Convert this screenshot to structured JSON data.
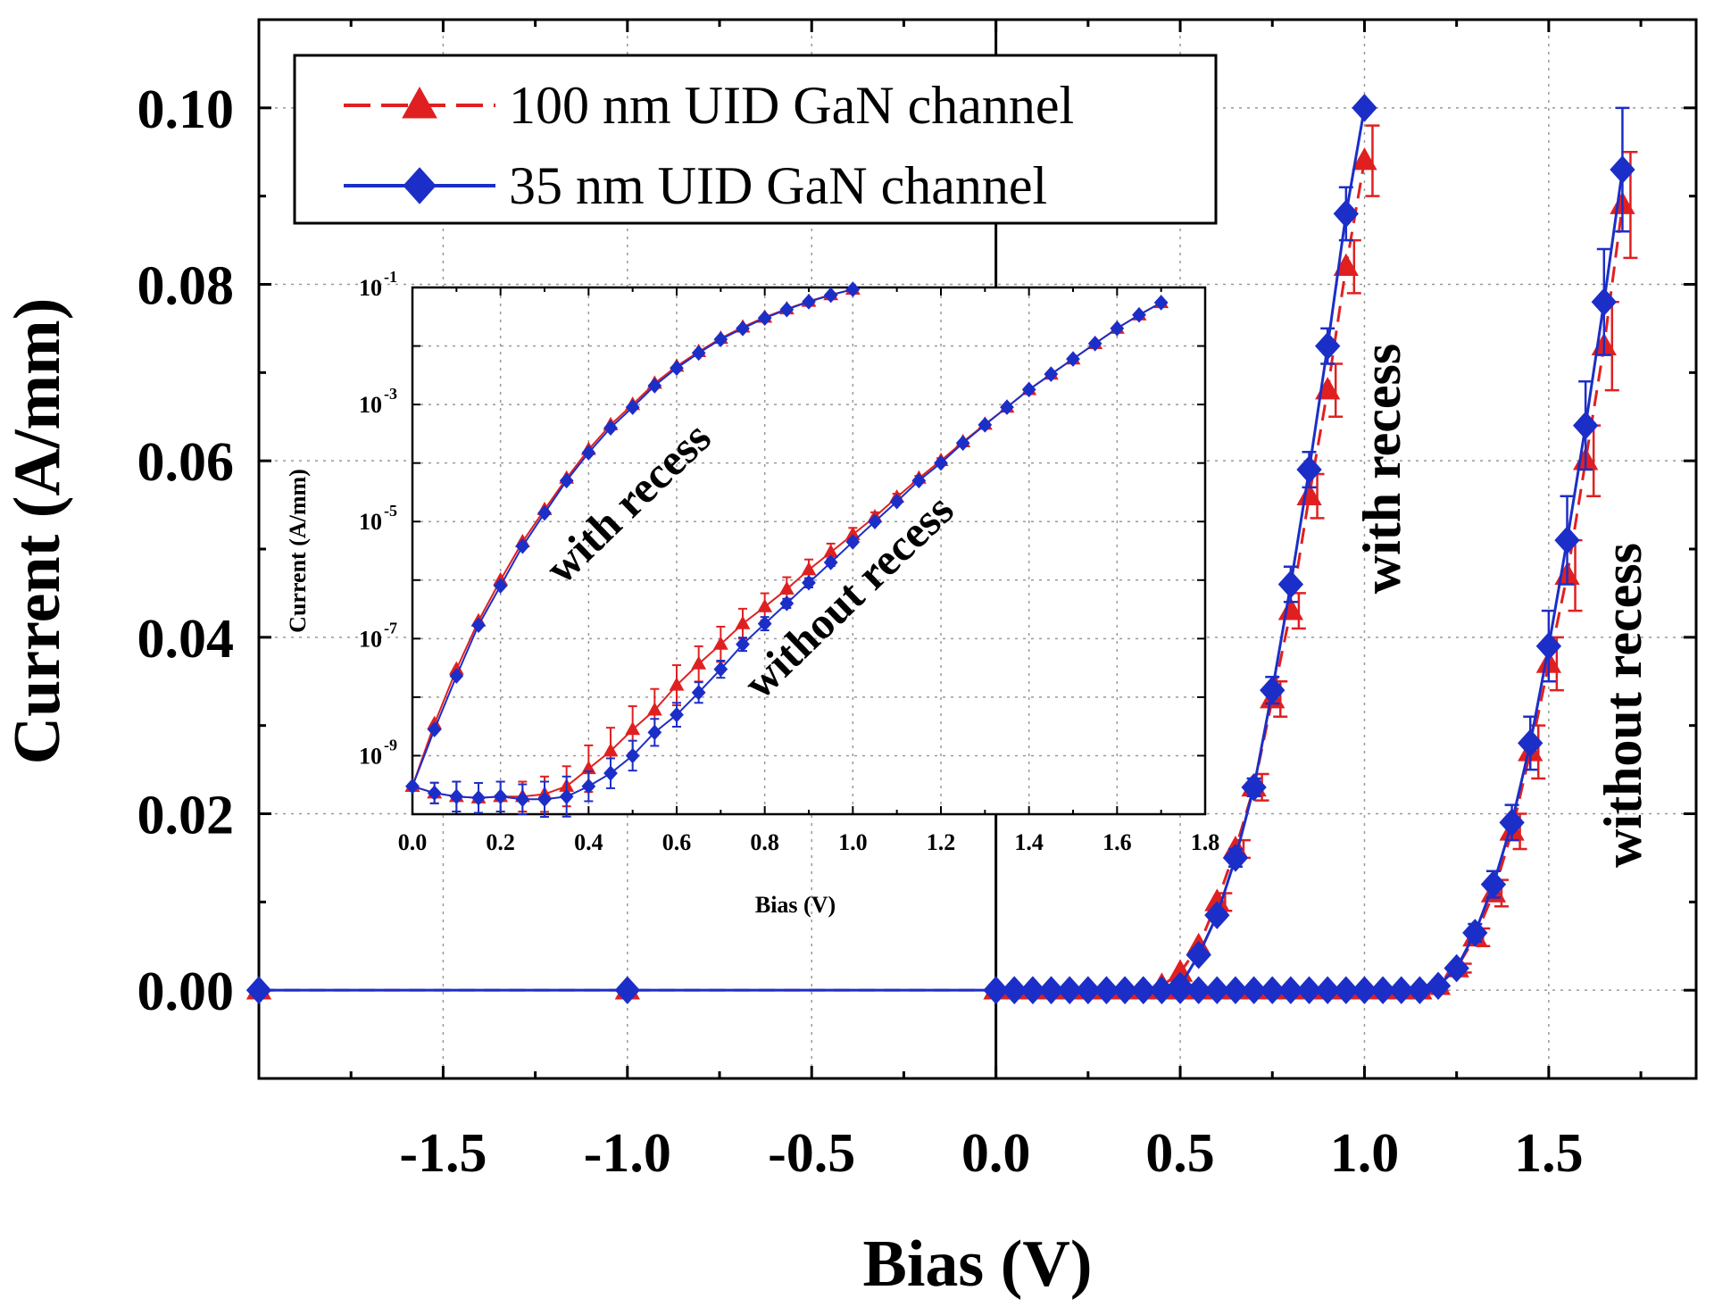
{
  "chart_data": [
    {
      "type": "line",
      "xlabel": "Bias (V)",
      "ylabel": "Current (A/mm)",
      "xlim": [
        -2.0,
        1.9
      ],
      "ylim": [
        -0.01,
        0.11
      ],
      "x_ticks": [
        "-1.5",
        "-1.0",
        "-0.5",
        "0.0",
        "0.5",
        "1.0",
        "1.5"
      ],
      "y_ticks": [
        "0.00",
        "0.02",
        "0.04",
        "0.06",
        "0.08",
        "0.10"
      ],
      "x_tick_values": [
        -1.5,
        -1.0,
        -0.5,
        0.0,
        0.5,
        1.0,
        1.5
      ],
      "y_tick_values": [
        0.0,
        0.02,
        0.04,
        0.06,
        0.08,
        0.1
      ],
      "grid": true,
      "legend_position": "top-left",
      "legend": [
        "100 nm UID GaN channel",
        "35 nm UID GaN channel"
      ],
      "annotations": [
        "with recess",
        "without recess"
      ],
      "series": [
        {
          "name": "100 nm UID GaN channel",
          "group": "with recess",
          "color": "#e02020",
          "marker": "triangle",
          "x": [
            -2.0,
            -1.0,
            0.0,
            0.05,
            0.1,
            0.15,
            0.2,
            0.25,
            0.3,
            0.35,
            0.4,
            0.45,
            0.5,
            0.55,
            0.6,
            0.65,
            0.7,
            0.75,
            0.8,
            0.85,
            0.9,
            0.95,
            1.0
          ],
          "y": [
            0.0,
            0.0,
            0.0,
            0.0,
            0.0,
            0.0,
            0.0,
            0.0,
            0.0,
            0.0,
            0.0,
            0.0005,
            0.002,
            0.005,
            0.01,
            0.016,
            0.023,
            0.033,
            0.043,
            0.056,
            0.068,
            0.082,
            0.094
          ],
          "err": [
            0,
            0,
            0,
            0,
            0,
            0,
            0,
            0,
            0,
            0,
            0,
            0,
            0,
            0,
            0.001,
            0.001,
            0.0015,
            0.002,
            0.002,
            0.0025,
            0.003,
            0.003,
            0.004
          ]
        },
        {
          "name": "35 nm UID GaN channel",
          "group": "with recess",
          "color": "#1c2ec8",
          "marker": "diamond",
          "x": [
            -2.0,
            -1.0,
            0.0,
            0.05,
            0.1,
            0.15,
            0.2,
            0.25,
            0.3,
            0.35,
            0.4,
            0.45,
            0.5,
            0.55,
            0.6,
            0.65,
            0.7,
            0.75,
            0.8,
            0.85,
            0.9,
            0.95,
            1.0
          ],
          "y": [
            0.0,
            0.0,
            0.0,
            0.0,
            0.0,
            0.0,
            0.0,
            0.0,
            0.0,
            0.0,
            0.0,
            0.0,
            0.0005,
            0.004,
            0.0085,
            0.015,
            0.023,
            0.034,
            0.046,
            0.059,
            0.073,
            0.088,
            0.1
          ],
          "err": [
            0,
            0,
            0,
            0,
            0,
            0,
            0,
            0,
            0,
            0,
            0,
            0,
            0,
            0,
            0.0005,
            0.001,
            0.001,
            0.0015,
            0.002,
            0.002,
            0.002,
            0.003,
            0.0
          ]
        },
        {
          "name": "100 nm UID GaN channel",
          "group": "without recess",
          "color": "#e02020",
          "marker": "triangle",
          "x": [
            0.0,
            0.05,
            0.1,
            0.15,
            0.2,
            0.25,
            0.3,
            0.35,
            0.4,
            0.45,
            0.5,
            0.55,
            0.6,
            0.65,
            0.7,
            0.75,
            0.8,
            0.85,
            0.9,
            0.95,
            1.0,
            1.05,
            1.1,
            1.15,
            1.2,
            1.25,
            1.3,
            1.35,
            1.4,
            1.45,
            1.5,
            1.55,
            1.6,
            1.65,
            1.7
          ],
          "y": [
            0.0,
            0.0,
            0.0,
            0.0,
            0.0,
            0.0,
            0.0,
            0.0,
            0.0,
            0.0,
            0.0,
            0.0,
            0.0,
            0.0,
            0.0,
            0.0,
            0.0,
            0.0,
            0.0,
            0.0,
            0.0,
            0.0,
            0.0,
            0.0,
            0.0005,
            0.0025,
            0.006,
            0.011,
            0.018,
            0.027,
            0.037,
            0.047,
            0.06,
            0.073,
            0.089
          ],
          "err": [
            0,
            0,
            0,
            0,
            0,
            0,
            0,
            0,
            0,
            0,
            0,
            0,
            0,
            0,
            0,
            0,
            0,
            0,
            0,
            0,
            0,
            0,
            0,
            0,
            0,
            0.0005,
            0.001,
            0.0015,
            0.002,
            0.003,
            0.003,
            0.004,
            0.004,
            0.005,
            0.006
          ]
        },
        {
          "name": "35 nm UID GaN channel",
          "group": "without recess",
          "color": "#1c2ec8",
          "marker": "diamond",
          "x": [
            0.0,
            0.05,
            0.1,
            0.15,
            0.2,
            0.25,
            0.3,
            0.35,
            0.4,
            0.45,
            0.5,
            0.55,
            0.6,
            0.65,
            0.7,
            0.75,
            0.8,
            0.85,
            0.9,
            0.95,
            1.0,
            1.05,
            1.1,
            1.15,
            1.2,
            1.25,
            1.3,
            1.35,
            1.4,
            1.45,
            1.5,
            1.55,
            1.6,
            1.65,
            1.7
          ],
          "y": [
            0.0,
            0.0,
            0.0,
            0.0,
            0.0,
            0.0,
            0.0,
            0.0,
            0.0,
            0.0,
            0.0,
            0.0,
            0.0,
            0.0,
            0.0,
            0.0,
            0.0,
            0.0,
            0.0,
            0.0,
            0.0,
            0.0,
            0.0,
            0.0,
            0.0005,
            0.0025,
            0.0065,
            0.012,
            0.019,
            0.028,
            0.039,
            0.051,
            0.064,
            0.078,
            0.093
          ],
          "err": [
            0,
            0,
            0,
            0,
            0,
            0,
            0,
            0,
            0,
            0,
            0,
            0,
            0,
            0,
            0,
            0,
            0,
            0,
            0,
            0,
            0,
            0,
            0,
            0,
            0,
            0.0005,
            0.001,
            0.0015,
            0.002,
            0.003,
            0.004,
            0.005,
            0.005,
            0.006,
            0.007
          ]
        }
      ]
    },
    {
      "type": "line",
      "xlabel": "Bias (V)",
      "ylabel": "Current (A/mm)",
      "xlim": [
        0.0,
        1.8
      ],
      "ylim": [
        1e-10,
        0.1
      ],
      "y_scale": "log",
      "x_ticks": [
        "0.0",
        "0.2",
        "0.4",
        "0.6",
        "0.8",
        "1.0",
        "1.2",
        "1.4",
        "1.6",
        "1.8"
      ],
      "y_ticks": [
        "10",
        "10",
        "10",
        "10",
        "10"
      ],
      "y_tick_exponents": [
        "-1",
        "-3",
        "-5",
        "-7",
        "-9"
      ],
      "x_tick_values": [
        0.0,
        0.2,
        0.4,
        0.6,
        0.8,
        1.0,
        1.2,
        1.4,
        1.6,
        1.8
      ],
      "y_tick_values": [
        0.1,
        0.001,
        1e-05,
        1e-07,
        1e-09
      ],
      "grid": true,
      "annotations": [
        "with recess",
        "without recess"
      ],
      "series": [
        {
          "name": "100 nm UID GaN channel",
          "group": "with recess",
          "color": "#e02020",
          "marker": "triangle",
          "x": [
            0.0,
            0.05,
            0.1,
            0.15,
            0.2,
            0.25,
            0.3,
            0.35,
            0.4,
            0.45,
            0.5,
            0.55,
            0.6,
            0.65,
            0.7,
            0.75,
            0.8,
            0.85,
            0.9,
            0.95,
            1.0
          ],
          "y": [
            3e-10,
            3.5e-09,
            3e-08,
            2e-07,
            1e-06,
            4.5e-06,
            1.6e-05,
            5.5e-05,
            0.00017,
            0.00045,
            0.001,
            0.0023,
            0.0045,
            0.008,
            0.0135,
            0.021,
            0.031,
            0.043,
            0.058,
            0.075,
            0.093
          ]
        },
        {
          "name": "35 nm UID GaN channel",
          "group": "with recess",
          "color": "#1c2ec8",
          "marker": "diamond",
          "x": [
            0.0,
            0.05,
            0.1,
            0.15,
            0.2,
            0.25,
            0.3,
            0.35,
            0.4,
            0.45,
            0.5,
            0.55,
            0.6,
            0.65,
            0.7,
            0.75,
            0.8,
            0.85,
            0.9,
            0.95,
            1.0
          ],
          "y": [
            3e-10,
            2.8e-09,
            2.3e-08,
            1.7e-07,
            8e-07,
            3.8e-06,
            1.4e-05,
            5e-05,
            0.00015,
            0.0004,
            0.0009,
            0.0021,
            0.0042,
            0.0076,
            0.013,
            0.02,
            0.03,
            0.042,
            0.057,
            0.074,
            0.093
          ]
        },
        {
          "name": "100 nm UID GaN channel",
          "group": "without recess",
          "color": "#e02020",
          "marker": "triangle",
          "x": [
            0.0,
            0.05,
            0.1,
            0.15,
            0.2,
            0.25,
            0.3,
            0.35,
            0.4,
            0.45,
            0.5,
            0.55,
            0.6,
            0.65,
            0.7,
            0.75,
            0.8,
            0.85,
            0.9,
            0.95,
            1.0,
            1.05,
            1.1,
            1.15,
            1.2,
            1.25,
            1.3,
            1.35,
            1.4,
            1.45,
            1.5,
            1.55,
            1.6,
            1.65,
            1.7
          ],
          "y": [
            3e-10,
            2.3e-10,
            2e-10,
            1.9e-10,
            2e-10,
            2e-10,
            2.2e-10,
            3e-10,
            6e-10,
            1.2e-09,
            2.8e-09,
            6e-09,
            1.6e-08,
            3.7e-08,
            8e-08,
            1.8e-07,
            3.5e-07,
            7e-07,
            1.5e-06,
            3e-06,
            6e-06,
            1.2e-05,
            2.6e-05,
            5.5e-05,
            0.00011,
            0.00023,
            0.00046,
            0.0009,
            0.0018,
            0.0033,
            0.006,
            0.011,
            0.02,
            0.034,
            0.055
          ],
          "err_factor": [
            1,
            1.5,
            1.8,
            1.8,
            1.8,
            1.8,
            2,
            2.2,
            2.5,
            2.5,
            2.5,
            2.3,
            2.2,
            2,
            2,
            1.8,
            1.7,
            1.6,
            1.5,
            1.4,
            1.3,
            1.2,
            1.15,
            1.1,
            1.1,
            1,
            1,
            1,
            1,
            1,
            1,
            1,
            1,
            1,
            1
          ]
        },
        {
          "name": "35 nm UID GaN channel",
          "group": "without recess",
          "color": "#1c2ec8",
          "marker": "diamond",
          "x": [
            0.0,
            0.05,
            0.1,
            0.15,
            0.2,
            0.25,
            0.3,
            0.35,
            0.4,
            0.45,
            0.5,
            0.55,
            0.6,
            0.65,
            0.7,
            0.75,
            0.8,
            0.85,
            0.9,
            0.95,
            1.0,
            1.05,
            1.1,
            1.15,
            1.2,
            1.25,
            1.3,
            1.35,
            1.4,
            1.45,
            1.5,
            1.55,
            1.6,
            1.65,
            1.7
          ],
          "y": [
            3e-10,
            2.3e-10,
            2e-10,
            1.9e-10,
            2e-10,
            1.8e-10,
            1.8e-10,
            2e-10,
            3e-10,
            5e-10,
            1e-09,
            2.5e-09,
            5e-09,
            1.2e-08,
            3e-08,
            8e-08,
            1.8e-07,
            4e-07,
            9e-07,
            2e-06,
            4.5e-06,
            1e-05,
            2.2e-05,
            5e-05,
            0.0001,
            0.00022,
            0.00045,
            0.0009,
            0.0018,
            0.0033,
            0.006,
            0.011,
            0.02,
            0.034,
            0.055
          ],
          "err_factor": [
            1,
            1.5,
            1.8,
            1.8,
            1.8,
            1.8,
            2,
            2.2,
            1.8,
            1.8,
            1.8,
            1.7,
            1.6,
            1.5,
            1.4,
            1.3,
            1.3,
            1.2,
            1.2,
            1.15,
            1.1,
            1.1,
            1.05,
            1,
            1,
            1,
            1,
            1,
            1,
            1,
            1,
            1,
            1,
            1,
            1
          ]
        }
      ]
    }
  ]
}
